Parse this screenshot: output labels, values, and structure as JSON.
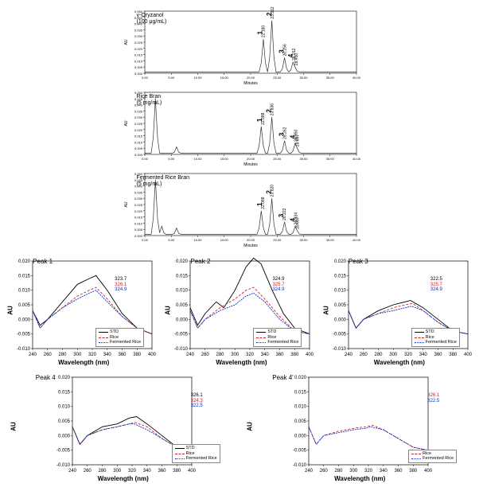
{
  "colors": {
    "axis": "#000000",
    "trace": "#333333",
    "std": "#000000",
    "rice": "#d02020",
    "ferm": "#1030c0",
    "bg": "#ffffff"
  },
  "chromatograms": [
    {
      "label": "γ-Oryzanol\n(100 μg/mL)",
      "peaks": [
        {
          "num": "1",
          "rt": "22.180",
          "x": 0.555,
          "h": 0.55
        },
        {
          "num": "2",
          "rt": "23.912",
          "x": 0.598,
          "h": 0.85
        },
        {
          "num": "3",
          "rt": "26.256",
          "x": 0.656,
          "h": 0.25
        },
        {
          "num": "4",
          "rt": "28.012",
          "x": 0.7,
          "h": 0.18
        },
        {
          "num": "",
          "rt": "28.450",
          "x": 0.711,
          "h": 0.1
        }
      ],
      "extras": []
    },
    {
      "label": "Rice Bran\n(5 mg/mL)",
      "peaks": [
        {
          "num": "1",
          "rt": "22.088",
          "x": 0.553,
          "h": 0.45
        },
        {
          "num": "2",
          "rt": "23.836",
          "x": 0.596,
          "h": 0.6
        },
        {
          "num": "3",
          "rt": "26.262",
          "x": 0.656,
          "h": 0.22
        },
        {
          "num": "4",
          "rt": "28.350",
          "x": 0.709,
          "h": 0.18
        },
        {
          "num": "",
          "rt": "28.697",
          "x": 0.717,
          "h": 0.1
        }
      ],
      "extras": [
        {
          "x": 0.05,
          "h": 0.9
        },
        {
          "x": 0.15,
          "h": 0.12
        }
      ]
    },
    {
      "label": "Fermented Rice Bran\n(5 mg/mL)",
      "peaks": [
        {
          "num": "1",
          "rt": "22.088",
          "x": 0.553,
          "h": 0.4
        },
        {
          "num": "2",
          "rt": "23.820",
          "x": 0.596,
          "h": 0.6
        },
        {
          "num": "3",
          "rt": "26.222",
          "x": 0.655,
          "h": 0.22
        },
        {
          "num": "4",
          "rt": "28.334",
          "x": 0.708,
          "h": 0.15
        },
        {
          "num": "",
          "rt": "28.697",
          "x": 0.717,
          "h": 0.08
        }
      ],
      "extras": [
        {
          "x": 0.05,
          "h": 0.9
        },
        {
          "x": 0.08,
          "h": 0.15
        },
        {
          "x": 0.15,
          "h": 0.12
        }
      ]
    }
  ],
  "chrom_axis": {
    "x_label": "Minutes",
    "y_label": "AU",
    "x_ticks": [
      "0.00",
      "5.00",
      "10.00",
      "15.00",
      "20.00",
      "25.00",
      "30.00",
      "35.00",
      "40.00"
    ],
    "y_ticks": [
      "0.000",
      "0.005",
      "0.010",
      "0.015",
      "0.020",
      "0.025",
      "0.030",
      "0.035",
      "0.040",
      "0.045",
      "0.050"
    ]
  },
  "spec_axis": {
    "x_label": "Wavelength (nm)",
    "y_label": "AU",
    "x_ticks": [
      "240",
      "260",
      "280",
      "300",
      "320",
      "340",
      "360",
      "380",
      "400"
    ],
    "y_ticks": [
      "-0.010",
      "-0.005",
      "0.000",
      "0.005",
      "0.010",
      "0.015",
      "0.020"
    ]
  },
  "legend": {
    "std": "STD",
    "rice": "Rice",
    "ferm": "Fermented Rice"
  },
  "spectra": [
    {
      "title": "Peak 1",
      "wl": [
        {
          "v": "323.7",
          "c": "std"
        },
        {
          "v": "326.1",
          "c": "rice"
        },
        {
          "v": "324.9",
          "c": "ferm"
        }
      ],
      "traces": {
        "std": [
          [
            240,
            0.003
          ],
          [
            250,
            -0.002
          ],
          [
            260,
            0.0
          ],
          [
            280,
            0.006
          ],
          [
            300,
            0.012
          ],
          [
            316,
            0.014
          ],
          [
            325,
            0.015
          ],
          [
            340,
            0.01
          ],
          [
            360,
            0.002
          ],
          [
            380,
            -0.003
          ],
          [
            400,
            -0.005
          ]
        ],
        "rice": [
          [
            240,
            0.003
          ],
          [
            250,
            -0.003
          ],
          [
            260,
            0.0
          ],
          [
            280,
            0.004
          ],
          [
            300,
            0.008
          ],
          [
            316,
            0.01
          ],
          [
            325,
            0.011
          ],
          [
            340,
            0.007
          ],
          [
            360,
            0.001
          ],
          [
            380,
            -0.003
          ],
          [
            400,
            -0.005
          ]
        ],
        "ferm": [
          [
            240,
            0.003
          ],
          [
            250,
            -0.003
          ],
          [
            260,
            0.0
          ],
          [
            280,
            0.004
          ],
          [
            300,
            0.007
          ],
          [
            316,
            0.009
          ],
          [
            325,
            0.01
          ],
          [
            340,
            0.006
          ],
          [
            360,
            0.001
          ],
          [
            380,
            -0.003
          ],
          [
            400,
            -0.005
          ]
        ]
      }
    },
    {
      "title": "Peak 2",
      "wl": [
        {
          "v": "324.9",
          "c": "std"
        },
        {
          "v": "325.7",
          "c": "rice"
        },
        {
          "v": "324.9",
          "c": "ferm"
        }
      ],
      "traces": {
        "std": [
          [
            240,
            0.004
          ],
          [
            250,
            -0.002
          ],
          [
            260,
            0.002
          ],
          [
            275,
            0.006
          ],
          [
            285,
            0.004
          ],
          [
            300,
            0.01
          ],
          [
            315,
            0.018
          ],
          [
            325,
            0.021
          ],
          [
            335,
            0.019
          ],
          [
            350,
            0.01
          ],
          [
            365,
            0.002
          ],
          [
            380,
            -0.003
          ],
          [
            400,
            -0.005
          ]
        ],
        "rice": [
          [
            240,
            0.003
          ],
          [
            250,
            -0.003
          ],
          [
            260,
            0.0
          ],
          [
            280,
            0.004
          ],
          [
            300,
            0.007
          ],
          [
            315,
            0.01
          ],
          [
            325,
            0.011
          ],
          [
            340,
            0.007
          ],
          [
            360,
            0.001
          ],
          [
            380,
            -0.004
          ],
          [
            400,
            -0.005
          ]
        ],
        "ferm": [
          [
            240,
            0.003
          ],
          [
            250,
            -0.003
          ],
          [
            260,
            0.0
          ],
          [
            280,
            0.003
          ],
          [
            300,
            0.005
          ],
          [
            315,
            0.008
          ],
          [
            325,
            0.009
          ],
          [
            340,
            0.006
          ],
          [
            360,
            0.0
          ],
          [
            380,
            -0.004
          ],
          [
            400,
            -0.005
          ]
        ]
      }
    },
    {
      "title": "Peak 3",
      "wl": [
        {
          "v": "322.5",
          "c": "std"
        },
        {
          "v": "325.7",
          "c": "rice"
        },
        {
          "v": "324.9",
          "c": "ferm"
        }
      ],
      "traces": {
        "std": [
          [
            240,
            0.003
          ],
          [
            250,
            -0.003
          ],
          [
            260,
            0.0
          ],
          [
            280,
            0.003
          ],
          [
            300,
            0.005
          ],
          [
            316,
            0.006
          ],
          [
            323,
            0.0065
          ],
          [
            340,
            0.004
          ],
          [
            360,
            0.0
          ],
          [
            380,
            -0.004
          ],
          [
            400,
            -0.005
          ]
        ],
        "rice": [
          [
            240,
            0.003
          ],
          [
            250,
            -0.003
          ],
          [
            260,
            0.0
          ],
          [
            280,
            0.002
          ],
          [
            300,
            0.004
          ],
          [
            316,
            0.005
          ],
          [
            326,
            0.0055
          ],
          [
            340,
            0.003
          ],
          [
            360,
            -0.001
          ],
          [
            380,
            -0.004
          ],
          [
            400,
            -0.005
          ]
        ],
        "ferm": [
          [
            240,
            0.003
          ],
          [
            250,
            -0.003
          ],
          [
            260,
            0.0
          ],
          [
            280,
            0.002
          ],
          [
            300,
            0.003
          ],
          [
            316,
            0.004
          ],
          [
            325,
            0.0045
          ],
          [
            340,
            0.003
          ],
          [
            360,
            -0.001
          ],
          [
            380,
            -0.004
          ],
          [
            400,
            -0.005
          ]
        ]
      }
    },
    {
      "title": "Peak 4",
      "wl": [
        {
          "v": "326.1",
          "c": "std"
        },
        {
          "v": "324.3",
          "c": "rice"
        },
        {
          "v": "322.5",
          "c": "ferm"
        }
      ],
      "traces": {
        "std": [
          [
            240,
            0.003
          ],
          [
            250,
            -0.003
          ],
          [
            260,
            0.0
          ],
          [
            280,
            0.003
          ],
          [
            300,
            0.004
          ],
          [
            316,
            0.006
          ],
          [
            326,
            0.0065
          ],
          [
            340,
            0.004
          ],
          [
            360,
            0.0
          ],
          [
            380,
            -0.004
          ],
          [
            400,
            -0.005
          ]
        ],
        "rice": [
          [
            240,
            0.003
          ],
          [
            250,
            -0.003
          ],
          [
            260,
            0.0
          ],
          [
            280,
            0.002
          ],
          [
            300,
            0.003
          ],
          [
            316,
            0.004
          ],
          [
            324,
            0.0045
          ],
          [
            340,
            0.003
          ],
          [
            360,
            -0.001
          ],
          [
            380,
            -0.004
          ],
          [
            400,
            -0.005
          ]
        ],
        "ferm": [
          [
            240,
            0.003
          ],
          [
            250,
            -0.003
          ],
          [
            260,
            0.0
          ],
          [
            280,
            0.002
          ],
          [
            300,
            0.003
          ],
          [
            316,
            0.004
          ],
          [
            323,
            0.004
          ],
          [
            340,
            0.002
          ],
          [
            360,
            -0.001
          ],
          [
            380,
            -0.004
          ],
          [
            400,
            -0.005
          ]
        ]
      }
    },
    {
      "title": "Peak 4'",
      "wl": [
        {
          "v": "326.1",
          "c": "rice"
        },
        {
          "v": "322.5",
          "c": "ferm"
        }
      ],
      "no_std": true,
      "traces": {
        "rice": [
          [
            240,
            0.003
          ],
          [
            250,
            -0.003
          ],
          [
            260,
            0.0
          ],
          [
            280,
            0.0015
          ],
          [
            300,
            0.0025
          ],
          [
            316,
            0.003
          ],
          [
            326,
            0.0035
          ],
          [
            340,
            0.002
          ],
          [
            360,
            -0.001
          ],
          [
            380,
            -0.004
          ],
          [
            400,
            -0.005
          ]
        ],
        "ferm": [
          [
            240,
            0.003
          ],
          [
            250,
            -0.003
          ],
          [
            260,
            0.0
          ],
          [
            280,
            0.001
          ],
          [
            300,
            0.002
          ],
          [
            316,
            0.0025
          ],
          [
            323,
            0.003
          ],
          [
            340,
            0.002
          ],
          [
            360,
            -0.001
          ],
          [
            380,
            -0.004
          ],
          [
            400,
            -0.005
          ]
        ]
      }
    }
  ]
}
